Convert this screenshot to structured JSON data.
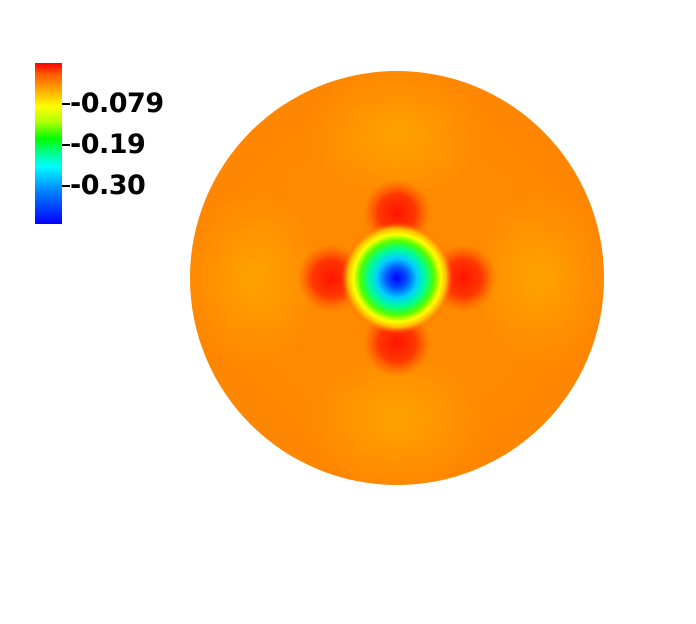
{
  "colorbar": {
    "ticks": [
      {
        "label": "-0.079"
      },
      {
        "label": "-0.19"
      },
      {
        "label": "-0.30"
      }
    ],
    "colors": {
      "max": "#ff0000",
      "upper": "#ffaa00",
      "mid_high": "#ffff00",
      "mid": "#00ff00",
      "mid_low": "#00ffff",
      "min": "#0000ff"
    }
  },
  "plot": {
    "shape": "disk",
    "background_color": "#ff8a00",
    "lobe_color": "#ffa500",
    "center_color": "#0000ff",
    "ring_color": "#ffff00",
    "hot_spot_color": "#ff2000"
  }
}
